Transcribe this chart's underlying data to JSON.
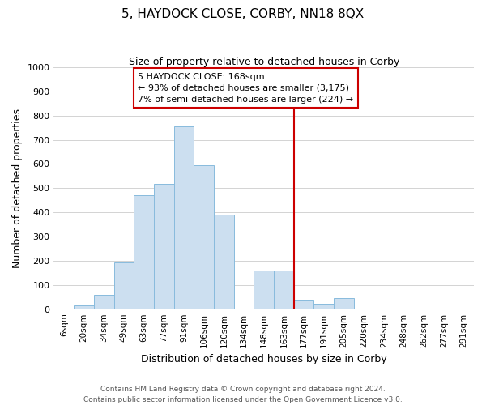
{
  "title": "5, HAYDOCK CLOSE, CORBY, NN18 8QX",
  "subtitle": "Size of property relative to detached houses in Corby",
  "xlabel": "Distribution of detached houses by size in Corby",
  "ylabel": "Number of detached properties",
  "bar_labels": [
    "6sqm",
    "20sqm",
    "34sqm",
    "49sqm",
    "63sqm",
    "77sqm",
    "91sqm",
    "106sqm",
    "120sqm",
    "134sqm",
    "148sqm",
    "163sqm",
    "177sqm",
    "191sqm",
    "205sqm",
    "220sqm",
    "234sqm",
    "248sqm",
    "262sqm",
    "277sqm",
    "291sqm"
  ],
  "bar_values": [
    0,
    15,
    60,
    193,
    470,
    518,
    757,
    595,
    390,
    0,
    160,
    160,
    40,
    22,
    45,
    0,
    0,
    0,
    0,
    0,
    0
  ],
  "bar_color": "#ccdff0",
  "bar_edge_color": "#88bbdd",
  "vline_color": "#cc0000",
  "annotation_title": "5 HAYDOCK CLOSE: 168sqm",
  "annotation_line1": "← 93% of detached houses are smaller (3,175)",
  "annotation_line2": "7% of semi-detached houses are larger (224) →",
  "annotation_box_color": "#ffffff",
  "annotation_box_edge_color": "#cc0000",
  "ylim": [
    0,
    1000
  ],
  "yticks": [
    0,
    100,
    200,
    300,
    400,
    500,
    600,
    700,
    800,
    900,
    1000
  ],
  "grid_color": "#cccccc",
  "footer1": "Contains HM Land Registry data © Crown copyright and database right 2024.",
  "footer2": "Contains public sector information licensed under the Open Government Licence v3.0.",
  "title_fontsize": 11,
  "subtitle_fontsize": 9,
  "axis_label_fontsize": 9,
  "tick_fontsize": 7.5,
  "footer_fontsize": 6.5,
  "annotation_fontsize": 8,
  "vline_x_index": 12
}
